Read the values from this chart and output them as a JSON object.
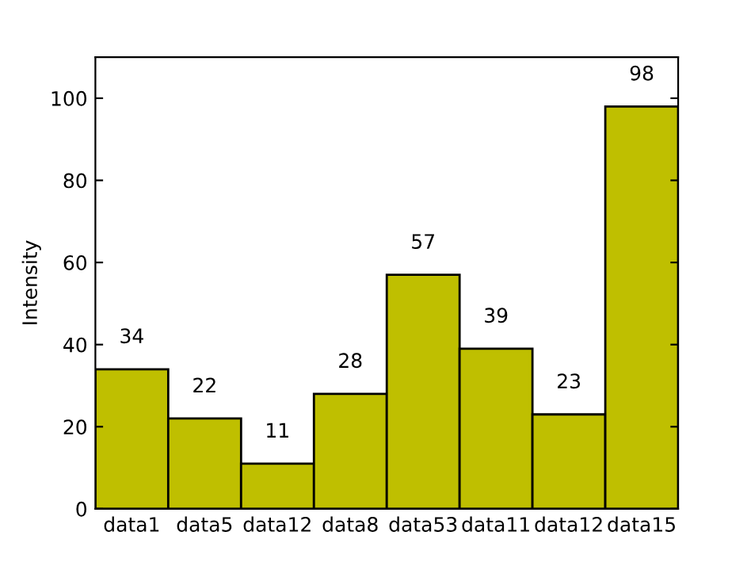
{
  "chart_data": {
    "type": "bar",
    "ylabel": "Intensity",
    "categories": [
      "data1",
      "data5",
      "data12",
      "data8",
      "data53",
      "data11",
      "data12",
      "data15"
    ],
    "values": [
      34,
      22,
      11,
      28,
      57,
      39,
      23,
      98
    ],
    "color": "#bfbf00",
    "ylim": [
      0,
      110
    ],
    "yticks": [
      0,
      20,
      40,
      60,
      80,
      100
    ],
    "grid": false,
    "data_labels": true
  }
}
